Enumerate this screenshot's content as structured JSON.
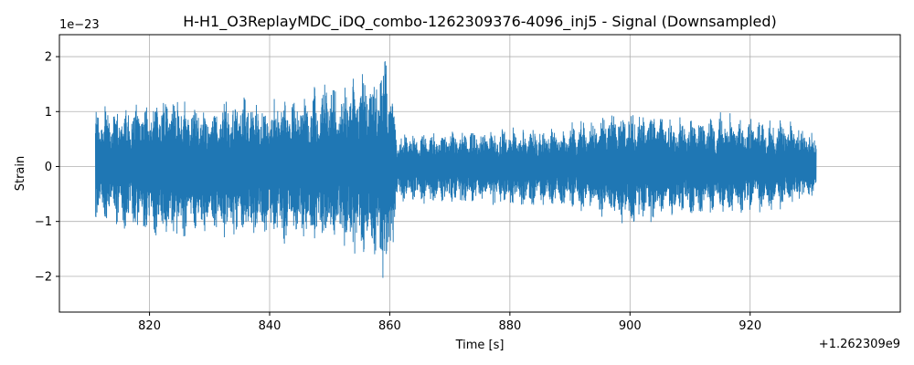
{
  "chart_data": {
    "type": "line",
    "title": "H-H1_O3ReplayMDC_iDQ_combo-1262309376-4096_inj5 - Signal (Downsampled)",
    "xlabel": "Time [s]",
    "ylabel": "Strain",
    "x_offset_label": "+1.262309e9",
    "y_scale_label": "1e−23",
    "xlim": [
      805,
      945
    ],
    "ylim": [
      -2.65,
      2.4
    ],
    "x_ticks": [
      820,
      840,
      860,
      880,
      900,
      920
    ],
    "x_tick_labels": [
      "820",
      "840",
      "860",
      "880",
      "900",
      "920"
    ],
    "y_ticks": [
      -2,
      -1,
      0,
      1,
      2
    ],
    "y_tick_labels": [
      "−2",
      "−1",
      "0",
      "1",
      "2"
    ],
    "grid": true,
    "line_color": "#1f77b4",
    "series": [
      {
        "name": "",
        "x_range": [
          811,
          931
        ],
        "envelope": {
          "x": [
            811,
            815,
            820,
            825,
            830,
            835,
            840,
            845,
            850,
            855,
            858,
            859.5,
            860.5,
            861,
            865,
            870,
            875,
            880,
            885,
            890,
            895,
            900,
            905,
            910,
            915,
            920,
            925,
            931
          ],
          "upper": [
            1.2,
            1.15,
            1.35,
            1.4,
            1.05,
            1.45,
            1.3,
            1.4,
            1.6,
            1.75,
            2.0,
            2.2,
            1.6,
            0.7,
            0.65,
            0.7,
            0.7,
            0.75,
            0.75,
            0.8,
            1.0,
            1.1,
            1.0,
            0.95,
            1.05,
            0.95,
            0.95,
            0.7
          ],
          "lower": [
            -1.0,
            -1.15,
            -1.35,
            -1.4,
            -1.25,
            -1.45,
            -1.4,
            -1.5,
            -1.5,
            -1.75,
            -1.9,
            -2.45,
            -1.8,
            -0.7,
            -0.7,
            -0.75,
            -0.75,
            -0.75,
            -0.75,
            -0.8,
            -0.95,
            -1.15,
            -1.0,
            -0.95,
            -0.95,
            -0.9,
            -0.8,
            -0.6
          ]
        }
      }
    ]
  }
}
